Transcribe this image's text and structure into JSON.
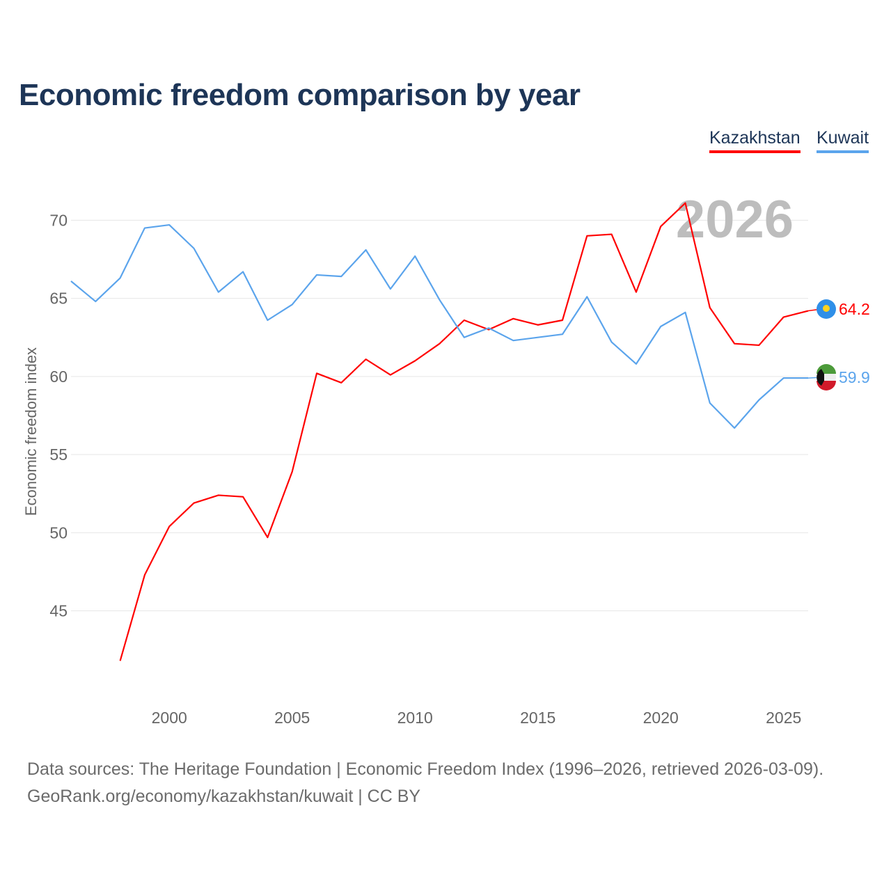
{
  "chart_data": {
    "type": "line",
    "title": "Economic freedom comparison by year",
    "xlabel": "",
    "ylabel": "Economic freedom index",
    "xlim": [
      1996,
      2026
    ],
    "ylim": [
      39.5,
      73
    ],
    "xticks": [
      2000,
      2005,
      2010,
      2015,
      2020,
      2025
    ],
    "yticks": [
      45,
      50,
      55,
      60,
      65,
      70
    ],
    "grid": true,
    "legend_placement": "top-right",
    "year_label": "2026",
    "series": [
      {
        "name": "Kazakhstan",
        "color": "#ff0000",
        "end_label": "64.2",
        "x": [
          1998,
          1999,
          2000,
          2001,
          2002,
          2003,
          2004,
          2005,
          2006,
          2007,
          2008,
          2009,
          2010,
          2011,
          2012,
          2013,
          2014,
          2015,
          2016,
          2017,
          2018,
          2019,
          2020,
          2021,
          2022,
          2023,
          2024,
          2025,
          2026
        ],
        "values": [
          41.8,
          47.3,
          50.4,
          51.9,
          52.4,
          52.3,
          49.7,
          53.9,
          60.2,
          59.6,
          61.1,
          60.1,
          61.0,
          62.1,
          63.6,
          63.0,
          63.7,
          63.3,
          63.6,
          69.0,
          69.1,
          65.4,
          69.6,
          71.1,
          64.4,
          62.1,
          62.0,
          63.8,
          64.2
        ]
      },
      {
        "name": "Kuwait",
        "color": "#5ba4ec",
        "end_label": "59.9",
        "x": [
          1996,
          1997,
          1998,
          1999,
          2000,
          2001,
          2002,
          2003,
          2004,
          2005,
          2006,
          2007,
          2008,
          2009,
          2010,
          2011,
          2012,
          2013,
          2014,
          2015,
          2016,
          2017,
          2018,
          2019,
          2020,
          2021,
          2022,
          2023,
          2024,
          2025,
          2026
        ],
        "values": [
          66.1,
          64.8,
          66.3,
          69.5,
          69.7,
          68.2,
          65.4,
          66.7,
          63.6,
          64.6,
          66.5,
          66.4,
          68.1,
          65.6,
          67.7,
          64.9,
          62.5,
          63.1,
          62.3,
          62.5,
          62.7,
          65.1,
          62.2,
          60.8,
          63.2,
          64.1,
          58.3,
          56.7,
          58.5,
          59.9,
          59.9
        ]
      }
    ]
  },
  "source": {
    "line1": "Data sources: The Heritage Foundation | Economic Freedom Index (1996–2026, retrieved 2026-03-09).",
    "line2": "GeoRank.org/economy/kazakhstan/kuwait | CC BY"
  }
}
